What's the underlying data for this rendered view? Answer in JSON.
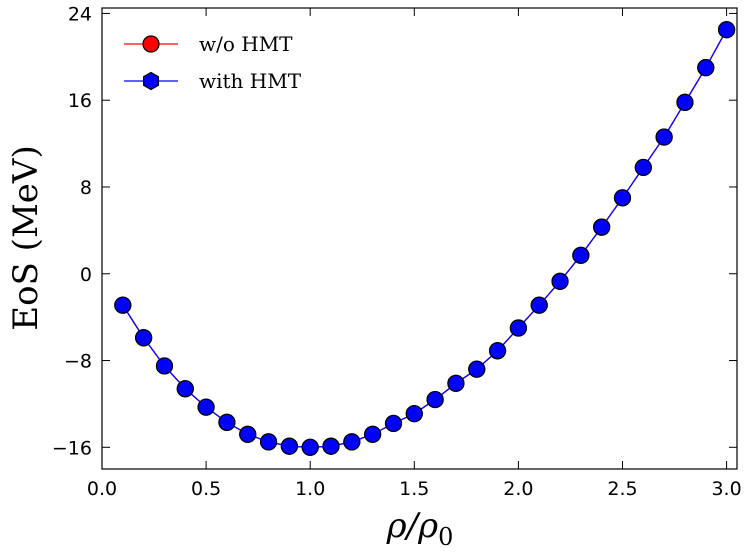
{
  "chart_data": {
    "type": "line",
    "title": "",
    "xlabel": "ρ/ρ",
    "xlabel_subscript": "0",
    "ylabel": "EoS (MeV)",
    "xlim": [
      0.0,
      3.05
    ],
    "ylim": [
      -18,
      24.5
    ],
    "x_ticks": [
      0.0,
      0.5,
      1.0,
      1.5,
      2.0,
      2.5,
      3.0
    ],
    "x_tick_labels": [
      "0.0",
      "0.5",
      "1.0",
      "1.5",
      "2.0",
      "2.5",
      "3.0"
    ],
    "y_ticks": [
      -16,
      -8,
      0,
      8,
      16,
      24
    ],
    "y_tick_labels": [
      "−16",
      "−8",
      "0",
      "8",
      "16",
      "24"
    ],
    "grid": false,
    "legend_position": "top-left",
    "x": [
      0.1,
      0.2,
      0.3,
      0.4,
      0.5,
      0.6,
      0.7,
      0.8,
      0.9,
      1.0,
      1.1,
      1.2,
      1.3,
      1.4,
      1.5,
      1.6,
      1.7,
      1.8,
      1.9,
      2.0,
      2.1,
      2.2,
      2.3,
      2.4,
      2.5,
      2.6,
      2.7,
      2.8,
      2.9,
      3.0
    ],
    "series": [
      {
        "name": "w/o HMT",
        "color": "#ff0000",
        "marker": "circle",
        "values": [
          -2.9,
          -5.9,
          -8.5,
          -10.6,
          -12.3,
          -13.7,
          -14.8,
          -15.5,
          -15.9,
          -16.0,
          -15.9,
          -15.5,
          -14.8,
          -13.8,
          -12.9,
          -11.6,
          -10.1,
          -8.8,
          -7.1,
          -5.0,
          -2.9,
          -0.7,
          1.7,
          4.3,
          7.0,
          9.8,
          12.6,
          15.8,
          19.0,
          22.5
        ]
      },
      {
        "name": "with HMT",
        "color": "#0000ff",
        "marker": "hexagon",
        "values": [
          -2.9,
          -5.9,
          -8.5,
          -10.6,
          -12.3,
          -13.7,
          -14.8,
          -15.5,
          -15.9,
          -16.0,
          -15.9,
          -15.5,
          -14.8,
          -13.8,
          -12.9,
          -11.6,
          -10.1,
          -8.8,
          -7.1,
          -5.0,
          -2.9,
          -0.7,
          1.7,
          4.3,
          7.0,
          9.8,
          12.6,
          15.8,
          19.0,
          22.5
        ]
      }
    ]
  }
}
